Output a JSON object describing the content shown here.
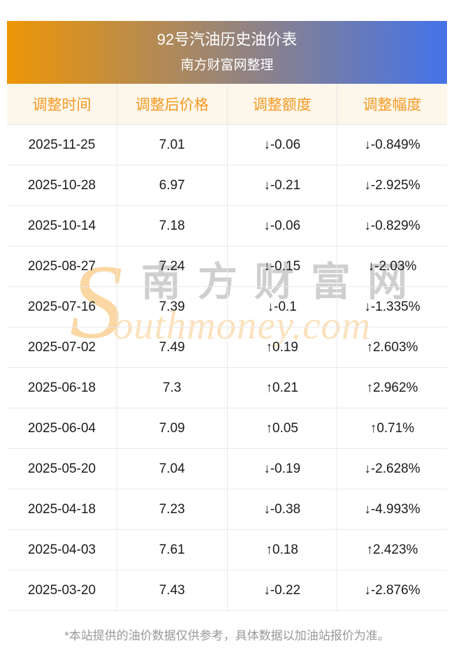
{
  "banner": {
    "title": "92号汽油历史油价表",
    "subtitle": "南方财富网整理"
  },
  "chart_data": {
    "type": "table",
    "title": "92号汽油历史油价表",
    "subtitle": "南方财富网整理",
    "columns": [
      "调整时间",
      "调整后价格",
      "调整额度",
      "调整幅度"
    ],
    "rows": [
      {
        "date": "2025-11-25",
        "price": "7.01",
        "change": "-0.06",
        "pct": "-0.849%",
        "direction": "down"
      },
      {
        "date": "2025-10-28",
        "price": "6.97",
        "change": "-0.21",
        "pct": "-2.925%",
        "direction": "down"
      },
      {
        "date": "2025-10-14",
        "price": "7.18",
        "change": "-0.06",
        "pct": "-0.829%",
        "direction": "down"
      },
      {
        "date": "2025-08-27",
        "price": "7.24",
        "change": "-0.15",
        "pct": "-2.03%",
        "direction": "down"
      },
      {
        "date": "2025-07-16",
        "price": "7.39",
        "change": "-0.1",
        "pct": "-1.335%",
        "direction": "down"
      },
      {
        "date": "2025-07-02",
        "price": "7.49",
        "change": "0.19",
        "pct": "2.603%",
        "direction": "up"
      },
      {
        "date": "2025-06-18",
        "price": "7.3",
        "change": "0.21",
        "pct": "2.962%",
        "direction": "up"
      },
      {
        "date": "2025-06-04",
        "price": "7.09",
        "change": "0.05",
        "pct": "0.71%",
        "direction": "up"
      },
      {
        "date": "2025-05-20",
        "price": "7.04",
        "change": "-0.19",
        "pct": "-2.628%",
        "direction": "down"
      },
      {
        "date": "2025-04-18",
        "price": "7.23",
        "change": "-0.38",
        "pct": "-4.993%",
        "direction": "down"
      },
      {
        "date": "2025-04-03",
        "price": "7.61",
        "change": "0.18",
        "pct": "2.423%",
        "direction": "up"
      },
      {
        "date": "2025-03-20",
        "price": "7.43",
        "change": "-0.22",
        "pct": "-2.876%",
        "direction": "down"
      }
    ]
  },
  "glyphs": {
    "arrow_up": "↑",
    "arrow_down": "↓"
  },
  "watermark": {
    "en_initial": "S",
    "cn": "南方财富网",
    "en_rest": "outhmoney.com"
  },
  "footer": {
    "note": "*本站提供的油价数据仅供参考，具体数据以加油站报价为准。"
  },
  "colors": {
    "gradient_left": "#ee9606",
    "gradient_right": "#4473e9",
    "header_bg": "#fdf6eb",
    "header_text": "#f59a23",
    "up_red": "#f01212",
    "down_green": "#159815",
    "body_text": "#1b1b1b",
    "footer_text": "#999999",
    "grid_line": "#e9e9e9"
  }
}
